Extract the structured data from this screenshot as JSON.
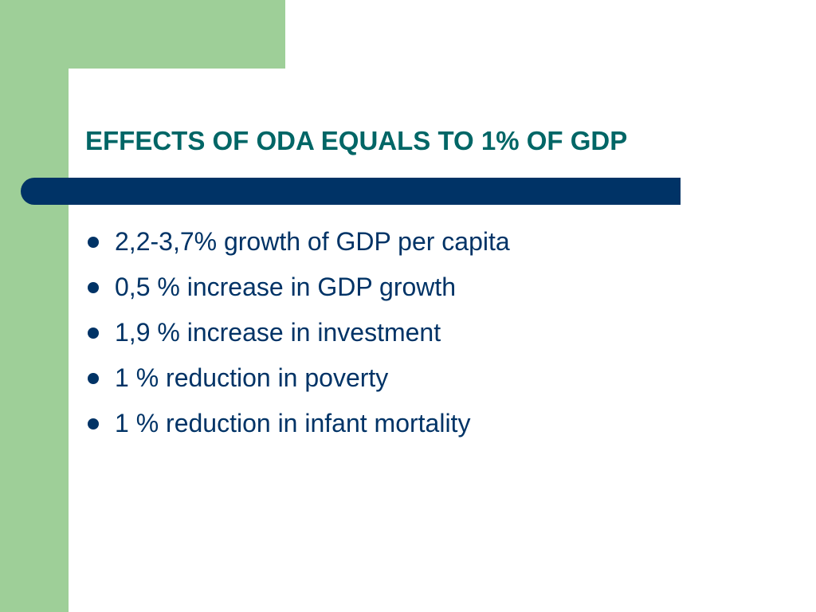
{
  "slide": {
    "title": "EFFECTS OF ODA EQUALS TO 1% OF GDP",
    "bullets": [
      "2,2-3,7% growth of GDP per capita",
      "0,5 % increase in GDP growth",
      "1,9 % increase in investment",
      "1 % reduction in poverty",
      "1 % reduction in infant mortality"
    ]
  },
  "colors": {
    "accent_green": "#9ecf98",
    "title_teal": "#006666",
    "navy": "#003366",
    "background": "#ffffff"
  }
}
